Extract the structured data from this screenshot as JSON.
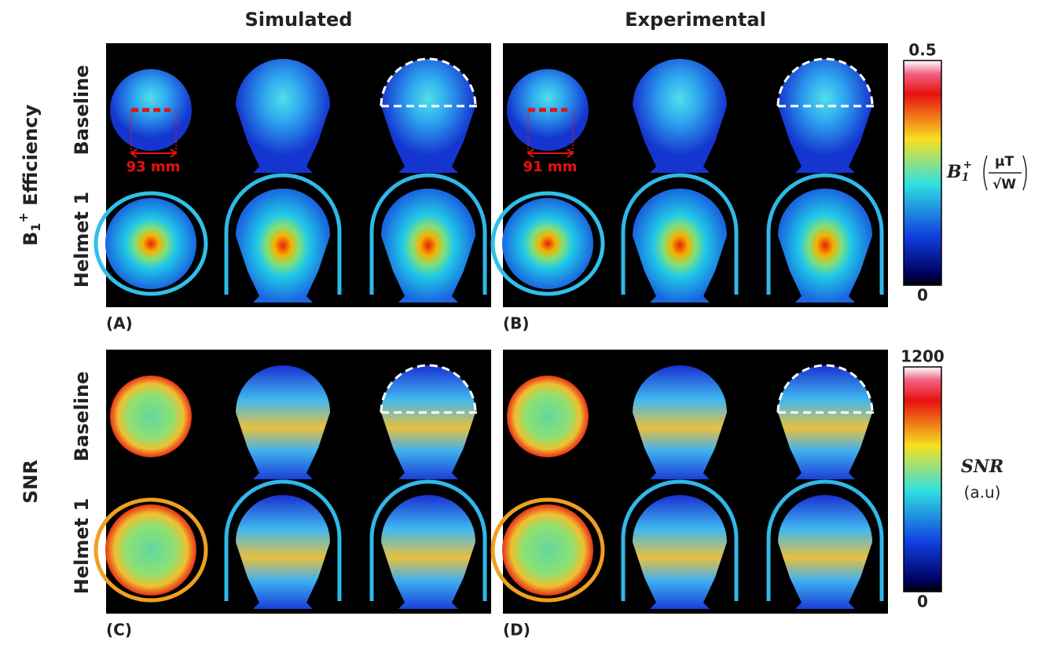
{
  "columns": [
    "Simulated",
    "Experimental"
  ],
  "sections": [
    {
      "title": {
        "base": "B",
        "sub": "1",
        "sup": "+",
        "rest": " Efficiency"
      },
      "rows": [
        "Baseline",
        "Helmet 1"
      ],
      "panels": [
        {
          "label": "(A)",
          "measure": "93 mm"
        },
        {
          "label": "(B)",
          "measure": "91 mm"
        }
      ],
      "colorbar": {
        "max": "0.5",
        "min": "0",
        "symbol": "B",
        "sub": "1",
        "sup": "+",
        "unit_num": "μT",
        "unit_den": "√W"
      }
    },
    {
      "title": {
        "base": "SNR"
      },
      "rows": [
        "Baseline",
        "Helmet 1"
      ],
      "panels": [
        {
          "label": "(C)"
        },
        {
          "label": "(D)"
        }
      ],
      "colorbar": {
        "max": "1200",
        "min": "0",
        "symbol": "SNR",
        "unit": "(a.u)"
      }
    }
  ]
}
